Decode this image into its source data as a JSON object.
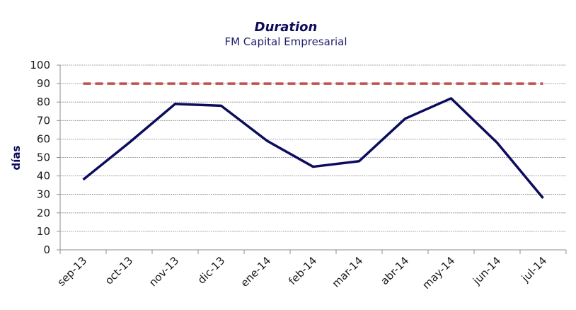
{
  "chart_data": {
    "type": "line",
    "title": "Duration",
    "subtitle": "FM Capital Empresarial",
    "y_label": "días",
    "categories": [
      "sep-13",
      "oct-13",
      "nov-13",
      "dic-13",
      "ene-14",
      "feb-14",
      "mar-14",
      "abr-14",
      "may-14",
      "jun-14",
      "jul-14"
    ],
    "series": [
      {
        "color": "#0c0c5c",
        "dashed": false,
        "values": [
          38,
          58,
          79,
          78,
          59,
          45,
          48,
          71,
          82,
          58,
          28
        ]
      },
      {
        "color": "#c0504d",
        "dashed": true,
        "values": [
          90,
          90,
          90,
          90,
          90,
          90,
          90,
          90,
          90,
          90,
          90
        ]
      }
    ],
    "ylim": [
      0,
      100
    ],
    "yticks": [
      0,
      10,
      20,
      30,
      40,
      50,
      60,
      70,
      80,
      90,
      100
    ],
    "grid": true
  }
}
